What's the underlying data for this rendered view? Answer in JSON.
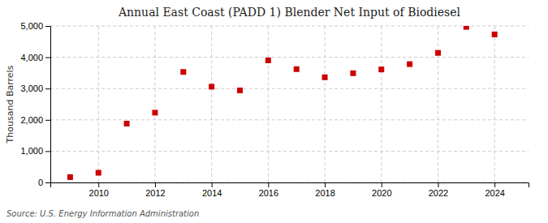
{
  "chart_data": {
    "type": "scatter",
    "title": "Annual East Coast (PADD 1) Blender Net Input of Biodiesel",
    "ylabel": "Thousand Barrels",
    "source": "Source: U.S. Energy Information Administration",
    "x": [
      2009,
      2010,
      2011,
      2012,
      2013,
      2014,
      2015,
      2016,
      2017,
      2018,
      2019,
      2020,
      2021,
      2022,
      2023,
      2024
    ],
    "values": [
      170,
      310,
      1880,
      2230,
      3530,
      3060,
      2940,
      3900,
      3620,
      3360,
      3490,
      3610,
      3780,
      4140,
      4970,
      4730
    ],
    "color": "#cc0000",
    "marker": "square",
    "xlim": [
      2008.3,
      2025.2
    ],
    "xticks": [
      2010,
      2012,
      2014,
      2016,
      2018,
      2020,
      2022,
      2024
    ],
    "ylim": [
      0,
      5000
    ],
    "yticks": [
      0,
      {
        "value": 1000,
        "label": "1,000"
      },
      {
        "value": 2000,
        "label": "2,000"
      },
      {
        "value": 3000,
        "label": "3,000"
      },
      {
        "value": 4000,
        "label": "4,000"
      },
      {
        "value": 5000,
        "label": "5,000"
      }
    ],
    "grid": true
  }
}
